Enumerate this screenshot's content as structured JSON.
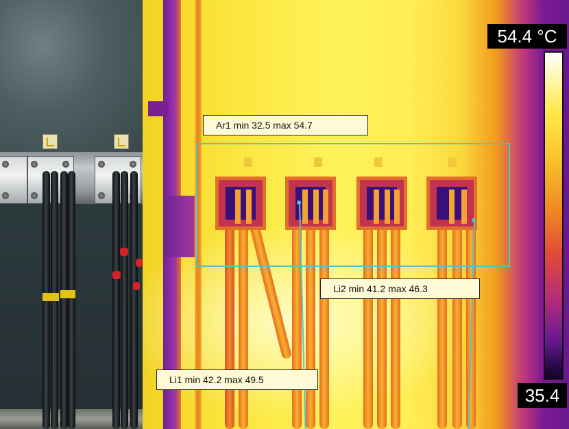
{
  "thermal_image": {
    "temperature_scale": {
      "max_label": "54.4 °C",
      "min_label": "35.4"
    },
    "measurements": {
      "area1": {
        "label": "Ar1 min 32.5 max 54.7"
      },
      "line1": {
        "label": "Li1 min 42.2 max 49.5"
      },
      "line2": {
        "label": "Li2 min 41.2 max 46.3"
      }
    },
    "marker_color": "#55c4c8",
    "palette": [
      "#120428",
      "#6a1a92",
      "#b32b7a",
      "#e04a3a",
      "#f08a22",
      "#ffe94a",
      "#ffffff"
    ]
  },
  "photo": {
    "subject": "cable terminals on electrical panel"
  }
}
